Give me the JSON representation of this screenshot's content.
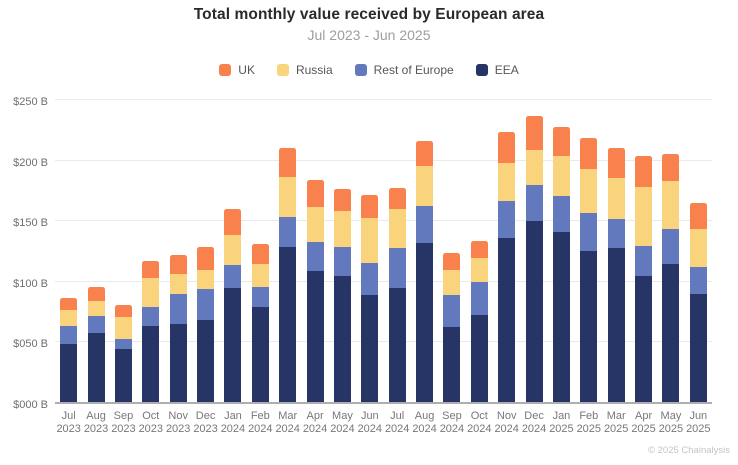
{
  "header": {
    "title": "Total monthly value received by European area",
    "subtitle": "Jul 2023 - Jun 2025"
  },
  "legend": [
    {
      "label": "UK",
      "color": "#F9814E"
    },
    {
      "label": "Russia",
      "color": "#FAD37D"
    },
    {
      "label": "Rest of Europe",
      "color": "#6279BE"
    },
    {
      "label": "EEA",
      "color": "#263566"
    }
  ],
  "chart_data": {
    "type": "bar",
    "stacked": true,
    "title": "Total monthly value received by European area",
    "subtitle": "Jul 2023 - Jun 2025",
    "unit": "USD billions",
    "categories": [
      {
        "month": "Jul",
        "year": "2023"
      },
      {
        "month": "Aug",
        "year": "2023"
      },
      {
        "month": "Sep",
        "year": "2023"
      },
      {
        "month": "Oct",
        "year": "2023"
      },
      {
        "month": "Nov",
        "year": "2023"
      },
      {
        "month": "Dec",
        "year": "2023"
      },
      {
        "month": "Jan",
        "year": "2024"
      },
      {
        "month": "Feb",
        "year": "2024"
      },
      {
        "month": "Mar",
        "year": "2024"
      },
      {
        "month": "Apr",
        "year": "2024"
      },
      {
        "month": "May",
        "year": "2024"
      },
      {
        "month": "Jun",
        "year": "2024"
      },
      {
        "month": "Jul",
        "year": "2024"
      },
      {
        "month": "Aug",
        "year": "2024"
      },
      {
        "month": "Sep",
        "year": "2024"
      },
      {
        "month": "Oct",
        "year": "2024"
      },
      {
        "month": "Nov",
        "year": "2024"
      },
      {
        "month": "Dec",
        "year": "2024"
      },
      {
        "month": "Jan",
        "year": "2025"
      },
      {
        "month": "Feb",
        "year": "2025"
      },
      {
        "month": "Mar",
        "year": "2025"
      },
      {
        "month": "Apr",
        "year": "2025"
      },
      {
        "month": "May",
        "year": "2025"
      },
      {
        "month": "Jun",
        "year": "2025"
      }
    ],
    "stack_order": "bottom-to-top",
    "series": [
      {
        "name": "EEA",
        "color": "#263566",
        "values": [
          48,
          57,
          44,
          63,
          64,
          68,
          94,
          78,
          128,
          108,
          104,
          88,
          94,
          131,
          62,
          72,
          135,
          149,
          140,
          125,
          127,
          104,
          114,
          89
        ]
      },
      {
        "name": "Rest of Europe",
        "color": "#6279BE",
        "values": [
          15,
          14,
          8,
          15,
          25,
          25,
          19,
          17,
          25,
          24,
          24,
          27,
          33,
          31,
          26,
          27,
          31,
          30,
          30,
          31,
          24,
          25,
          29,
          22
        ]
      },
      {
        "name": "Russia",
        "color": "#FAD37D",
        "values": [
          13,
          12,
          18,
          24,
          17,
          16,
          25,
          19,
          33,
          29,
          30,
          37,
          32,
          33,
          21,
          20,
          31,
          29,
          33,
          36,
          34,
          48,
          39,
          32
        ]
      },
      {
        "name": "UK",
        "color": "#F9814E",
        "values": [
          10,
          12,
          10,
          14,
          15,
          19,
          21,
          16,
          24,
          22,
          18,
          19,
          18,
          20,
          14,
          14,
          26,
          28,
          24,
          26,
          25,
          26,
          23,
          21
        ]
      }
    ],
    "ylim": [
      0,
      250
    ],
    "ytick_step": 50,
    "ytick_labels": [
      "$000 B",
      "$050 B",
      "$100 B",
      "$150 B",
      "$200 B",
      "$250 B"
    ],
    "grid": true,
    "legend_position": "top"
  },
  "footer": {
    "copyright": "© 2025 Chainalysis"
  }
}
